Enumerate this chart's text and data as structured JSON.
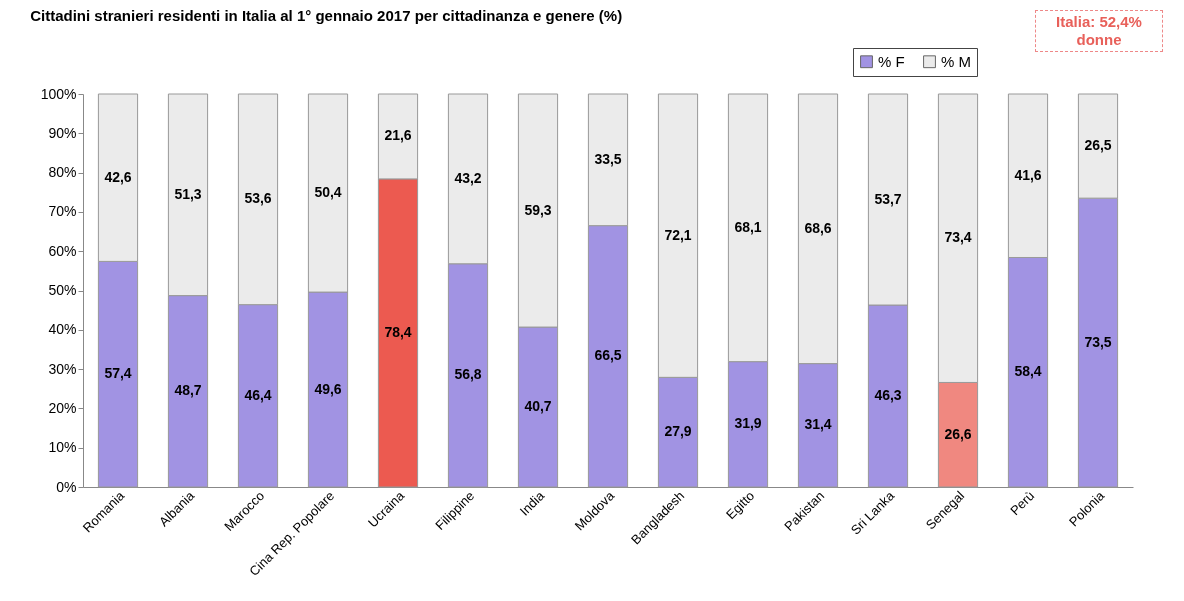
{
  "chart_data": {
    "type": "bar",
    "title": "Cittadini stranieri residenti in Italia al 1° gennaio 2017 per cittadinanza e genere (%)",
    "categories": [
      "Romania",
      "Albania",
      "Marocco",
      "Cina Rep. Popolare",
      "Ucraina",
      "Filippine",
      "India",
      "Moldova",
      "Bangladesh",
      "Egitto",
      "Pakistan",
      "Sri Lanka",
      "Senegal",
      "Perù",
      "Polonia"
    ],
    "stacked": true,
    "series": [
      {
        "name": "% F",
        "color": "#a193e3",
        "colors": [
          "#a193e3",
          "#a193e3",
          "#a193e3",
          "#a193e3",
          "#ec5a50",
          "#a193e3",
          "#a193e3",
          "#a193e3",
          "#a193e3",
          "#a193e3",
          "#a193e3",
          "#a193e3",
          "#f08880",
          "#a193e3",
          "#a193e3"
        ],
        "values": [
          57.4,
          48.7,
          46.4,
          49.6,
          78.4,
          56.8,
          40.7,
          66.5,
          27.9,
          31.9,
          31.4,
          46.3,
          26.6,
          58.4,
          73.5
        ],
        "value_labels": [
          "57,4",
          "48,7",
          "46,4",
          "49,6",
          "78,4",
          "56,8",
          "40,7",
          "66,5",
          "27,9",
          "31,9",
          "31,4",
          "46,3",
          "26,6",
          "58,4",
          "73,5"
        ]
      },
      {
        "name": "% M",
        "color": "#ebebeb",
        "values": [
          42.6,
          51.3,
          53.6,
          50.4,
          21.6,
          43.2,
          59.3,
          33.5,
          72.1,
          68.1,
          68.6,
          53.7,
          73.4,
          41.6,
          26.5
        ],
        "value_labels": [
          "42,6",
          "51,3",
          "53,6",
          "50,4",
          "21,6",
          "43,2",
          "59,3",
          "33,5",
          "72,1",
          "68,1",
          "68,6",
          "53,7",
          "73,4",
          "41,6",
          "26,5"
        ]
      }
    ],
    "ylim": [
      0,
      100
    ],
    "yticks": [
      {
        "value": 0,
        "label": "0%"
      },
      {
        "value": 10,
        "label": "10%"
      },
      {
        "value": 20,
        "label": "20%"
      },
      {
        "value": 30,
        "label": "30%"
      },
      {
        "value": 40,
        "label": "40%"
      },
      {
        "value": 50,
        "label": "50%"
      },
      {
        "value": 60,
        "label": "60%"
      },
      {
        "value": 70,
        "label": "70%"
      },
      {
        "value": 80,
        "label": "80%"
      },
      {
        "value": 90,
        "label": "90%"
      },
      {
        "value": 100,
        "label": "100%"
      }
    ],
    "legend": "top right",
    "annotations": [
      "Italia: 52,4% donne"
    ]
  }
}
